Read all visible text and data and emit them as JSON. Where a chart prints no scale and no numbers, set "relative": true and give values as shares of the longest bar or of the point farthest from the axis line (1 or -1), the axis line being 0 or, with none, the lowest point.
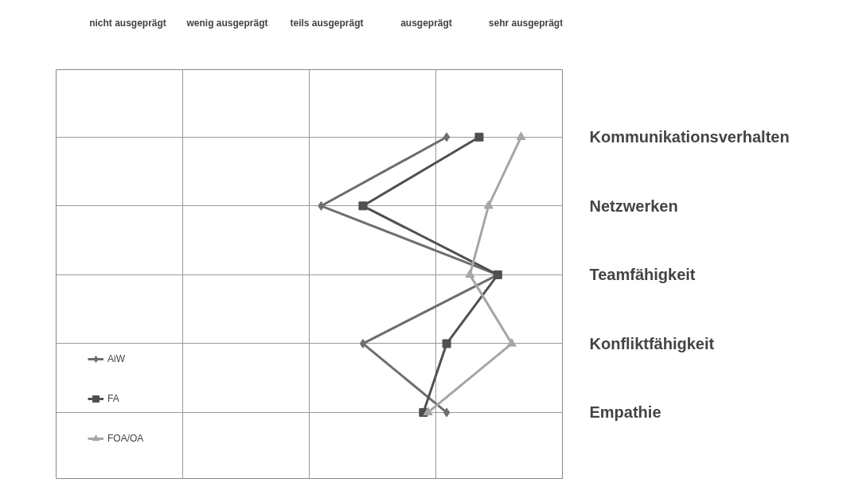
{
  "chart_data": {
    "type": "line",
    "orientation": "horizontal",
    "relative": true,
    "categories": [
      "Kommunikationsverhalten",
      "Netzwerken",
      "Teamfähigkeit",
      "Konfliktfähigkeit",
      "Empathie"
    ],
    "series": [
      {
        "name": "AiW",
        "color": "#6e6e6e",
        "marker": "diamond",
        "values": [
          0.84,
          0.57,
          0.95,
          0.66,
          0.84
        ]
      },
      {
        "name": "FA",
        "color": "#505050",
        "marker": "square",
        "values": [
          0.91,
          0.66,
          0.95,
          0.84,
          0.79
        ]
      },
      {
        "name": "FOA/OA",
        "color": "#a6a6a6",
        "marker": "triangle",
        "values": [
          1,
          0.93,
          0.89,
          0.98,
          0.8
        ]
      }
    ],
    "annotations": [
      "nicht ausgeprägt",
      "wenig ausgeprägt",
      "teils ausgeprägt",
      "ausgeprägt",
      "sehr ausgeprägt"
    ],
    "grid": true,
    "legend": "bottom left",
    "line_style": "solid"
  }
}
